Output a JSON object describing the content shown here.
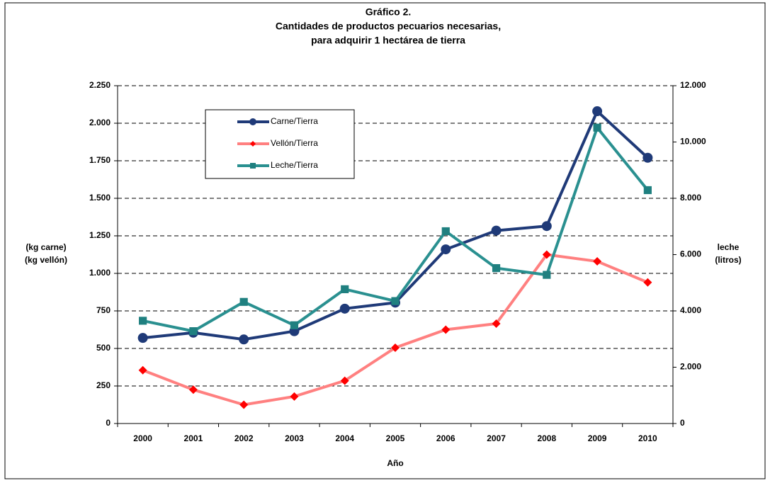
{
  "chart_data": {
    "type": "line",
    "title": [
      "Gráfico 2.",
      "Cantidades de productos  pecuarios necesarias,",
      "para adquirir 1 hectárea de tierra"
    ],
    "xlabel": "Año",
    "ylabel": [
      "(kg carne)",
      "(kg vellón)"
    ],
    "y2label": [
      "leche",
      "(litros)"
    ],
    "categories": [
      "2000",
      "2001",
      "2002",
      "2003",
      "2004",
      "2005",
      "2006",
      "2007",
      "2008",
      "2009",
      "2010"
    ],
    "series": [
      {
        "name": "Carne/Tierra",
        "color": "#1f3a78",
        "marker": "circle",
        "axis": "y",
        "values": [
          570,
          605,
          560,
          615,
          765,
          805,
          1160,
          1285,
          1315,
          2080,
          1770
        ]
      },
      {
        "name": "Vellón/Tierra",
        "color": "#ff8080",
        "marker_color": "#ff0000",
        "marker": "diamond",
        "axis": "y",
        "values": [
          355,
          225,
          125,
          180,
          285,
          505,
          625,
          665,
          1125,
          1080,
          940
        ]
      },
      {
        "name": "Leche/Tierra",
        "color": "#2a9090",
        "marker_color": "#1f8080",
        "marker": "square",
        "axis": "y2",
        "values": [
          3650,
          3280,
          4320,
          3490,
          4770,
          4350,
          6830,
          5520,
          5280,
          10510,
          8290
        ]
      }
    ],
    "ylim": [
      0,
      2250
    ],
    "yticks": [
      0,
      250,
      500,
      750,
      {
        "value": 1000,
        "label": "1.000"
      },
      {
        "value": 1250,
        "label": "1.250"
      },
      {
        "value": 1500,
        "label": "1.500"
      },
      {
        "value": 1750,
        "label": "1.750"
      },
      {
        "value": 2000,
        "label": "2.000"
      },
      {
        "value": 2250,
        "label": "2.250"
      }
    ],
    "y2lim": [
      0,
      12000
    ],
    "y2ticks": [
      0,
      {
        "value": 2000,
        "label": "2.000"
      },
      {
        "value": 4000,
        "label": "4.000"
      },
      {
        "value": 6000,
        "label": "6.000"
      },
      {
        "value": 8000,
        "label": "8.000"
      },
      {
        "value": 10000,
        "label": "10.000"
      },
      {
        "value": 12000,
        "label": "12.000"
      }
    ],
    "grid": true,
    "legend": "upper left"
  }
}
